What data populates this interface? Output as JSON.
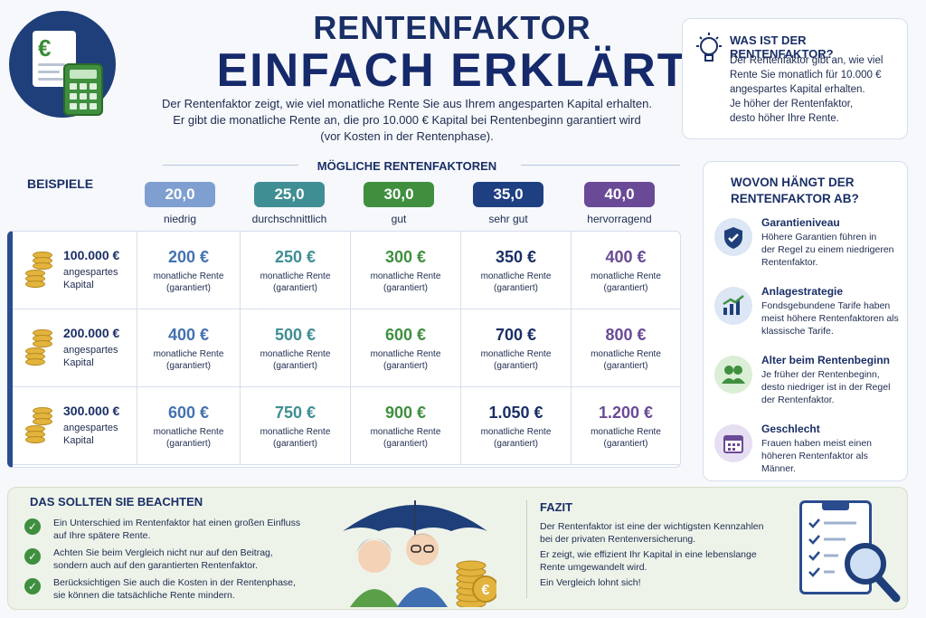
{
  "header": {
    "title_line1": "RENTENFAKTOR",
    "title_line2": "EINFACH ERKLÄRT",
    "intro_line1": "Der Rentenfaktor zeigt, wie viel monatliche Rente Sie aus Ihrem angesparten Kapital erhalten.",
    "intro_line2": "Er gibt die monatliche Rente an, die pro 10.000 € Kapital bei Rentenbeginn garantiert wird",
    "intro_line3": "(vor Kosten in der Rentenphase)."
  },
  "info_box": {
    "title": "WAS IST DER RENTENFAKTOR?",
    "line1": "Der Rentenfaktor gibt an, wie viel",
    "line2": "Rente Sie monatlich für 10.000 €",
    "line3": "angespartes Kapital erhalten.",
    "line4": "Je höher der Rentenfaktor,",
    "line5": "desto höher Ihre Rente."
  },
  "factors_title": "MÖGLICHE RENTENFAKTOREN",
  "examples_label": "BEISPIELE",
  "factors": [
    {
      "value": "20,0",
      "label": "niedrig",
      "color": "#7f9fd0"
    },
    {
      "value": "25,0",
      "label": "durchschnittlich",
      "color": "#3f8e93"
    },
    {
      "value": "30,0",
      "label": "gut",
      "color": "#3f8f3f"
    },
    {
      "value": "35,0",
      "label": "sehr gut",
      "color": "#1e3f82"
    },
    {
      "value": "40,0",
      "label": "hervorragend",
      "color": "#6a4a96"
    }
  ],
  "value_colors": [
    "#4472b0",
    "#3f8e93",
    "#3f8f3f",
    "#1a2f66",
    "#6a4a96"
  ],
  "rows": [
    {
      "amount": "100.000 €",
      "sub1": "angespartes",
      "sub2": "Kapital",
      "values": [
        "200 €",
        "250 €",
        "300 €",
        "350 €",
        "400 €"
      ]
    },
    {
      "amount": "200.000 €",
      "sub1": "angespartes",
      "sub2": "Kapital",
      "values": [
        "400 €",
        "500 €",
        "600 €",
        "700 €",
        "800 €"
      ]
    },
    {
      "amount": "300.000 €",
      "sub1": "angespartes",
      "sub2": "Kapital",
      "values": [
        "600 €",
        "750 €",
        "900 €",
        "1.050 €",
        "1.200 €"
      ]
    }
  ],
  "cell_sub1": "monatliche Rente",
  "cell_sub2": "(garantiert)",
  "side": {
    "title_line1": "WOVON HÄNGT DER",
    "title_line2": "RENTENFAKTOR AB?",
    "items": [
      {
        "icon": "shield-check-icon",
        "title": "Garantieniveau",
        "l1": "Höhere Garantien führen in",
        "l2": "der Regel zu einem niedrigeren",
        "l3": "Rentenfaktor."
      },
      {
        "icon": "chart-up-icon",
        "title": "Anlagestrategie",
        "l1": "Fondsgebundene Tarife haben",
        "l2": "meist höhere Rentenfaktoren als",
        "l3": "klassische Tarife."
      },
      {
        "icon": "people-icon",
        "title": "Alter beim Rentenbeginn",
        "l1": "Je früher der Rentenbeginn,",
        "l2": "desto niedriger ist in der Regel",
        "l3": "der Rentenfaktor."
      },
      {
        "icon": "calendar-icon",
        "title": "Geschlecht",
        "l1": "Frauen haben meist einen",
        "l2": "höheren Rentenfaktor als",
        "l3": "Männer."
      }
    ]
  },
  "bottom": {
    "title": "DAS SOLLTEN SIE BEACHTEN",
    "checks": [
      {
        "l1": "Ein Unterschied im Rentenfaktor hat einen großen Einfluss",
        "l2": "auf Ihre spätere Rente."
      },
      {
        "l1": "Achten Sie beim Vergleich nicht nur auf den Beitrag,",
        "l2": "sondern auch auf den garantierten Rentenfaktor."
      },
      {
        "l1": "Berücksichtigen Sie auch die Kosten in der Rentenphase,",
        "l2": "sie können die tatsächliche Rente mindern."
      }
    ],
    "fazit_title": "FAZIT",
    "fazit_l1": "Der Rentenfaktor ist eine der wichtigsten Kennzahlen",
    "fazit_l2": "bei der privaten Rentenversicherung.",
    "fazit_l3": "Er zeigt, wie effizient Ihr Kapital in eine lebenslange",
    "fazit_l4": "Rente umgewandelt wird.",
    "fazit_l5": "Ein Vergleich lohnt sich!",
    "coin_symbol": "€"
  },
  "logo_symbol": "€"
}
